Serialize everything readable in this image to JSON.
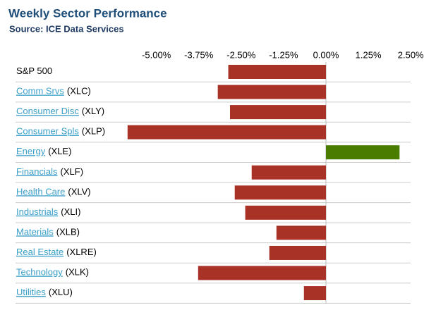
{
  "chart_data": {
    "type": "bar",
    "orientation": "horizontal",
    "title": "Weekly Sector Performance",
    "subtitle": "Source: ICE Data Services",
    "categories": [
      "S&P 500",
      "Comm Srvs",
      "Consumer Disc",
      "Consumer Spls",
      "Energy",
      "Financials",
      "Health Care",
      "Industrials",
      "Materials",
      "Real Estate",
      "Technology",
      "Utilities"
    ],
    "tickers": [
      null,
      "(XLC)",
      "(XLY)",
      "(XLP)",
      "(XLE)",
      "(XLF)",
      "(XLV)",
      "(XLI)",
      "(XLB)",
      "(XLRE)",
      "(XLK)",
      "(XLU)"
    ],
    "values": [
      -2.88,
      -3.19,
      -2.83,
      -5.85,
      2.17,
      -2.19,
      -2.69,
      -2.38,
      -1.46,
      -1.67,
      -3.77,
      -0.65
    ],
    "negative_color": "#a93226",
    "positive_color": "#4a7c00",
    "xlim": [
      -5.95,
      2.6
    ],
    "xticks": [
      {
        "value": -5,
        "label": "-5.00%"
      },
      {
        "value": -3.75,
        "label": "-3.75%"
      },
      {
        "value": -2.5,
        "label": "-2.50%"
      },
      {
        "value": -1.25,
        "label": "-1.25%"
      },
      {
        "value": 0,
        "label": "0.00%"
      },
      {
        "value": 1.25,
        "label": "1.25%"
      },
      {
        "value": 2.5,
        "label": "2.50%"
      }
    ]
  }
}
